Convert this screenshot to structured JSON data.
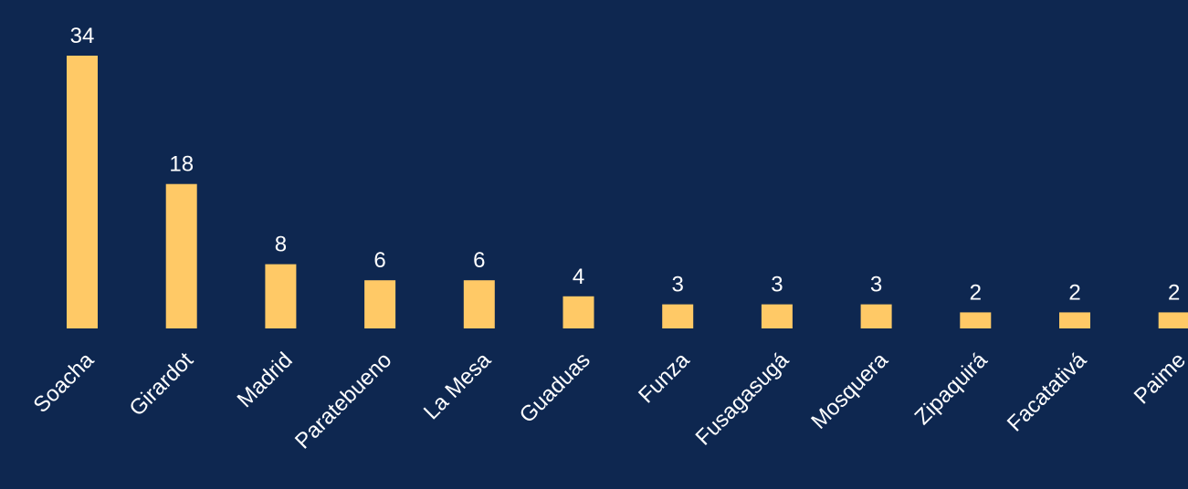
{
  "chart_data": {
    "type": "bar",
    "categories": [
      "Soacha",
      "Girardot",
      "Madrid",
      "Paratebueno",
      "La Mesa",
      "Guaduas",
      "Funza",
      "Fusagasugá",
      "Mosquera",
      "Zipaquirá",
      "Facatativá",
      "Paime"
    ],
    "values": [
      34,
      18,
      8,
      6,
      6,
      4,
      3,
      3,
      3,
      2,
      2,
      2
    ],
    "title": "",
    "xlabel": "",
    "ylabel": "",
    "ylim": [
      0,
      34
    ],
    "grid": false,
    "legend": "none",
    "colors": {
      "background": "#0e2750",
      "bar": "#ffc966",
      "text": "#ffffff"
    }
  }
}
